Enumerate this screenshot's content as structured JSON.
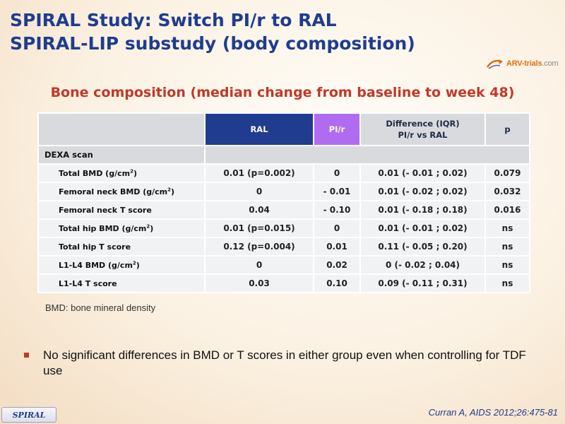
{
  "title": {
    "line1": "SPIRAL Study: Switch PI/r to RAL",
    "line2": "SPIRAL-LIP substudy (body composition)"
  },
  "logo": {
    "name": "ARV-trials",
    "suffix": ".com",
    "accent_color": "#e36c0a"
  },
  "subtitle": "Bone composition (median change from baseline to week 48)",
  "table": {
    "headers": {
      "ral": "RAL",
      "pir": "PI/r",
      "diff_line1": "Difference (IQR)",
      "diff_line2": "PI/r vs RAL",
      "p": "p"
    },
    "section_label": "DEXA scan",
    "rows": [
      {
        "label": "Total BMD (g/cm",
        "unit_sup": "2",
        "unit_tail": ")",
        "ral": "0.01 (p=0.002)",
        "pir": "0",
        "diff": "0.01 (- 0.01 ; 0.02)",
        "p": "0.079"
      },
      {
        "label": "Femoral neck BMD (g/cm",
        "unit_sup": "2",
        "unit_tail": ")",
        "ral": "0",
        "pir": "- 0.01",
        "diff": "0.01 (- 0.02 ; 0.02)",
        "p": "0.032"
      },
      {
        "label": "Femoral neck T score",
        "unit_sup": "",
        "unit_tail": "",
        "ral": "0.04",
        "pir": "- 0.10",
        "diff": "0.01 (- 0.18 ; 0.18)",
        "p": "0.016"
      },
      {
        "label": "Total hip BMD (g/cm",
        "unit_sup": "2",
        "unit_tail": ")",
        "ral": "0.01 (p=0.015)",
        "pir": "0",
        "diff": "0.01 (- 0.01 ; 0.02)",
        "p": "ns"
      },
      {
        "label": "Total hip T score",
        "unit_sup": "",
        "unit_tail": "",
        "ral": "0.12 (p=0.004)",
        "pir": "0.01",
        "diff": "0.11 (- 0.05 ; 0.20)",
        "p": "ns"
      },
      {
        "label": "L1-L4 BMD (g/cm",
        "unit_sup": "2",
        "unit_tail": ")",
        "ral": "0",
        "pir": "0.02",
        "diff": "0 (- 0.02 ; 0.04)",
        "p": "ns"
      },
      {
        "label": "L1-L4 T score",
        "unit_sup": "",
        "unit_tail": "",
        "ral": "0.03",
        "pir": "0.10",
        "diff": "0.09 (- 0.11 ; 0.31)",
        "p": "ns"
      }
    ]
  },
  "footnote": "BMD: bone mineral density",
  "bullet": "No significant differences in BMD or T scores in either group even when controlling for TDF use",
  "badge": "SPIRAL",
  "citation": "Curran A, AIDS 2012;26:475-81",
  "colors": {
    "title": "#1f3c8f",
    "subtitle": "#c0392b",
    "ral_header": "#1f3c8f",
    "pir_header": "#b06cf0"
  }
}
